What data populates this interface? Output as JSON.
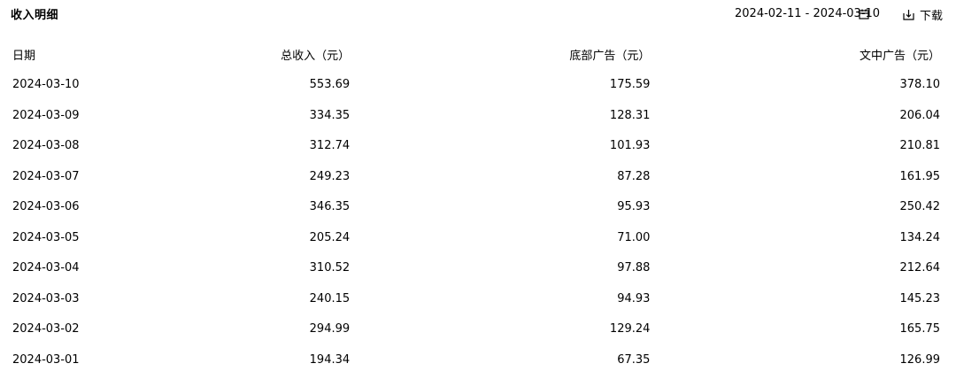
{
  "title": "收入明细",
  "date_range": "2024-02-11 - 2024-03-10",
  "download_label": "下载",
  "icons": {
    "calendar": "calendar-icon",
    "download": "download-icon"
  },
  "table": {
    "headers": [
      "日期",
      "总收入（元）",
      "底部广告（元）",
      "文中广告（元）"
    ],
    "rows": [
      [
        "2024-03-10",
        "553.69",
        "175.59",
        "378.10"
      ],
      [
        "2024-03-09",
        "334.35",
        "128.31",
        "206.04"
      ],
      [
        "2024-03-08",
        "312.74",
        "101.93",
        "210.81"
      ],
      [
        "2024-03-07",
        "249.23",
        "87.28",
        "161.95"
      ],
      [
        "2024-03-06",
        "346.35",
        "95.93",
        "250.42"
      ],
      [
        "2024-03-05",
        "205.24",
        "71.00",
        "134.24"
      ],
      [
        "2024-03-04",
        "310.52",
        "97.88",
        "212.64"
      ],
      [
        "2024-03-03",
        "240.15",
        "94.93",
        "145.23"
      ],
      [
        "2024-03-02",
        "294.99",
        "129.24",
        "165.75"
      ],
      [
        "2024-03-01",
        "194.34",
        "67.35",
        "126.99"
      ]
    ]
  }
}
